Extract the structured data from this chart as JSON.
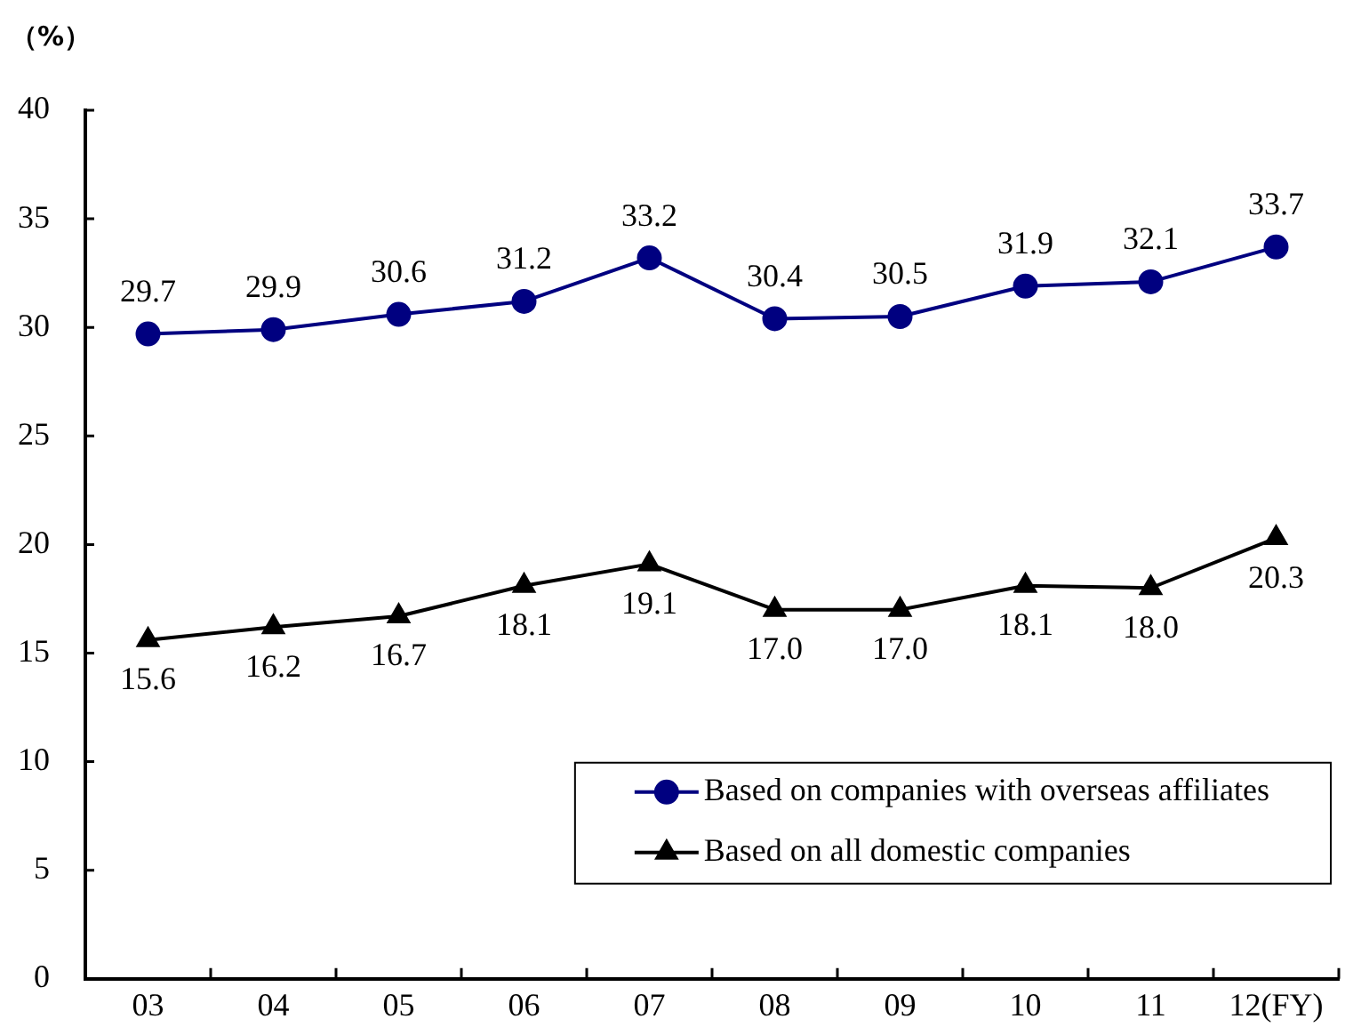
{
  "chart_data": {
    "type": "line",
    "ylabel": "（%）",
    "categories": [
      "03",
      "04",
      "05",
      "06",
      "07",
      "08",
      "09",
      "10",
      "11",
      "12(FY)"
    ],
    "series": [
      {
        "name": "Based on companies with overseas affiliates",
        "color": "#000080",
        "marker": "circle",
        "values": [
          29.7,
          29.9,
          30.6,
          31.2,
          33.2,
          30.4,
          30.5,
          31.9,
          32.1,
          33.7
        ],
        "value_labels": [
          "29.7",
          "29.9",
          "30.6",
          "31.2",
          "33.2",
          "30.4",
          "30.5",
          "31.9",
          "32.1",
          "33.7"
        ]
      },
      {
        "name": "Based on all domestic companies",
        "color": "#000000",
        "marker": "triangle",
        "values": [
          15.6,
          16.2,
          16.7,
          18.1,
          19.1,
          17.0,
          17.0,
          18.1,
          18.0,
          20.3
        ],
        "value_labels": [
          "15.6",
          "16.2",
          "16.7",
          "18.1",
          "19.1",
          "17.0",
          "17.0",
          "18.1",
          "18.0",
          "20.3"
        ]
      }
    ],
    "ylim": [
      0,
      40
    ],
    "yticks": [
      0,
      5,
      10,
      15,
      20,
      25,
      30,
      35,
      40
    ],
    "grid": false,
    "legend": "bottom right"
  }
}
